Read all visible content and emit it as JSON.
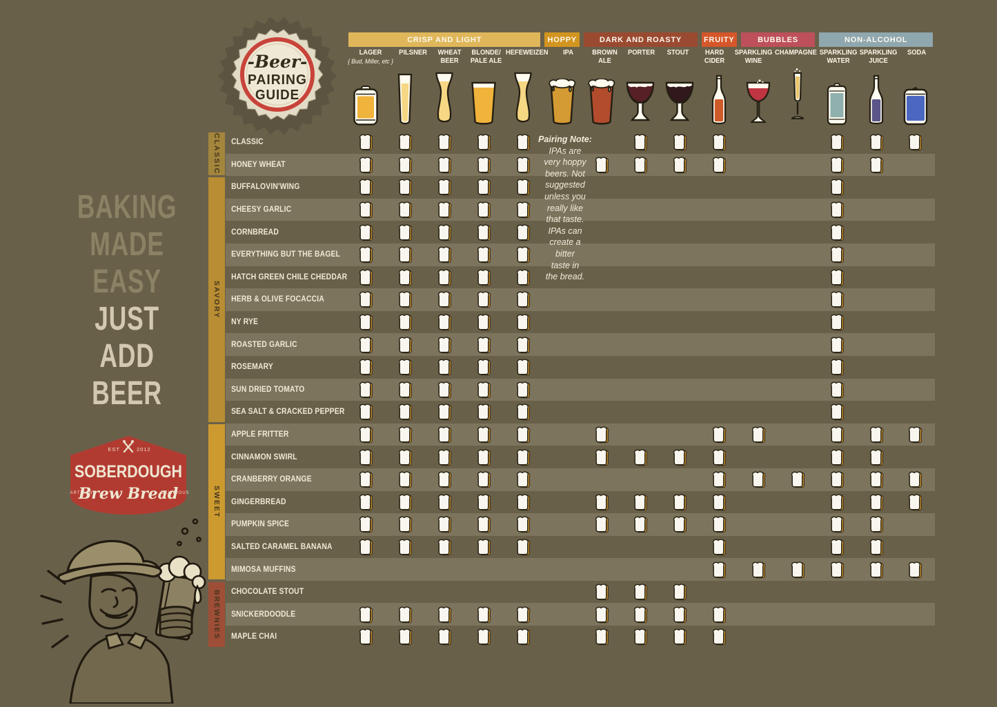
{
  "page": {
    "background": "#69604a"
  },
  "cap_logo": {
    "line1": "-Beer-",
    "line2": "PAIRING",
    "line3": "GUIDE"
  },
  "tagline": {
    "lines": [
      "BAKING",
      "MADE",
      "EASY",
      "JUST",
      "ADD",
      "BEER"
    ]
  },
  "brand": {
    "est": "EST",
    "year": "2012",
    "name": "SOBERDOUGH",
    "script": "Brew Bread",
    "left_small": "ARTISAN",
    "right_small": "DELICIOUS"
  },
  "pairing_note": {
    "lines": [
      "Pairing Note:",
      "IPAs are",
      "very hoppy",
      "beers. Not",
      "suggested",
      "unless you",
      "really like",
      "that taste.",
      "IPAs can",
      "create a",
      "bitter",
      "taste in",
      "the bread."
    ]
  },
  "chart_data": {
    "type": "heatmap",
    "title": "Beer Pairing Guide",
    "legend_note": "Pairing Note: IPAs are very hoppy beers. Not suggested unless you really like that taste. IPAs can create a bitter taste in the bread.",
    "category_bands": [
      {
        "label": "CRISP AND LIGHT",
        "color": "#dfb75a",
        "span": 5
      },
      {
        "label": "HOPPY",
        "color": "#d2951f",
        "span": 1
      },
      {
        "label": "DARK AND ROASTY",
        "color": "#9a4a31",
        "span": 3
      },
      {
        "label": "FRUITY",
        "color": "#d5562a",
        "span": 1
      },
      {
        "label": "BUBBLES",
        "color": "#bd505a",
        "span": 2
      },
      {
        "label": "NON-ALCOHOL",
        "color": "#8fa7ae",
        "span": 3
      }
    ],
    "columns": [
      {
        "id": "lager",
        "label": "LAGER",
        "sublabel": "{ Bud, Miller, etc }",
        "glass": "can",
        "color": "#f0b33b"
      },
      {
        "id": "pilsner",
        "label": "PILSNER",
        "glass": "pilsner",
        "color": "#f6d783"
      },
      {
        "id": "wheat-beer",
        "label": "WHEAT\nBEER",
        "glass": "weizen",
        "color": "#f6d783"
      },
      {
        "id": "blonde-pale-ale",
        "label": "BLONDE/\nPALE ALE",
        "glass": "pint",
        "color": "#f0b33b"
      },
      {
        "id": "hefeweizen",
        "label": "HEFEWEIZEN",
        "glass": "weizen",
        "color": "#f6d783"
      },
      {
        "id": "ipa",
        "label": "IPA",
        "glass": "pintfoam",
        "color": "#d49a33"
      },
      {
        "id": "brown-ale",
        "label": "BROWN ALE",
        "glass": "pintfoam",
        "color": "#b24c2d"
      },
      {
        "id": "porter",
        "label": "PORTER",
        "glass": "goblet",
        "color": "#571f26"
      },
      {
        "id": "stout",
        "label": "STOUT",
        "glass": "goblet",
        "color": "#31181c"
      },
      {
        "id": "hard-cider",
        "label": "HARD CIDER",
        "glass": "bottle",
        "color": "#cd5a28"
      },
      {
        "id": "sparkling-wine",
        "label": "SPARKLING\nWINE",
        "glass": "wine",
        "color": "#bf3541"
      },
      {
        "id": "champagne",
        "label": "CHAMPAGNE",
        "glass": "flute",
        "color": "#e9c469"
      },
      {
        "id": "sparkling-water",
        "label": "SPARKLING\nWATER",
        "glass": "tallcan",
        "color": "#8fb0ad"
      },
      {
        "id": "sparkling-juice",
        "label": "SPARKLING\nJUICE",
        "glass": "bottle",
        "color": "#5b5589"
      },
      {
        "id": "soda",
        "label": "SODA",
        "glass": "can2",
        "color": "#4b67c0"
      }
    ],
    "row_groups": [
      {
        "label": "CLASSIC",
        "color": "#a3853c",
        "row_count": 2
      },
      {
        "label": "SAVORY",
        "color": "#b88d33",
        "row_count": 11
      },
      {
        "label": "SWEET",
        "color": "#cc9a2f",
        "row_count": 7
      },
      {
        "label": "BREWNIES",
        "color": "#9e4e37",
        "row_count": 3
      }
    ],
    "rows": [
      {
        "name": "CLASSIC",
        "group": "CLASSIC",
        "pairs": [
          1,
          1,
          1,
          1,
          1,
          0,
          0,
          1,
          1,
          1,
          0,
          0,
          1,
          1,
          1
        ]
      },
      {
        "name": "HONEY WHEAT",
        "group": "CLASSIC",
        "pairs": [
          1,
          1,
          1,
          1,
          1,
          0,
          1,
          1,
          1,
          1,
          0,
          0,
          1,
          1,
          0
        ]
      },
      {
        "name": "BUFFALOVIN'WING",
        "group": "SAVORY",
        "pairs": [
          1,
          1,
          1,
          1,
          1,
          0,
          0,
          0,
          0,
          0,
          0,
          0,
          1,
          0,
          0
        ]
      },
      {
        "name": "CHEESY GARLIC",
        "group": "SAVORY",
        "pairs": [
          1,
          1,
          1,
          1,
          1,
          0,
          0,
          0,
          0,
          0,
          0,
          0,
          1,
          0,
          0
        ]
      },
      {
        "name": "CORNBREAD",
        "group": "SAVORY",
        "pairs": [
          1,
          1,
          1,
          1,
          1,
          0,
          0,
          0,
          0,
          0,
          0,
          0,
          1,
          0,
          0
        ]
      },
      {
        "name": "EVERYTHING BUT THE BAGEL",
        "group": "SAVORY",
        "pairs": [
          1,
          1,
          1,
          1,
          1,
          0,
          0,
          0,
          0,
          0,
          0,
          0,
          1,
          0,
          0
        ]
      },
      {
        "name": "HATCH GREEN CHILE CHEDDAR",
        "group": "SAVORY",
        "pairs": [
          1,
          1,
          1,
          1,
          1,
          0,
          0,
          0,
          0,
          0,
          0,
          0,
          1,
          0,
          0
        ]
      },
      {
        "name": "HERB & OLIVE FOCACCIA",
        "group": "SAVORY",
        "pairs": [
          1,
          1,
          1,
          1,
          1,
          0,
          0,
          0,
          0,
          0,
          0,
          0,
          1,
          0,
          0
        ]
      },
      {
        "name": "NY RYE",
        "group": "SAVORY",
        "pairs": [
          1,
          1,
          1,
          1,
          1,
          0,
          0,
          0,
          0,
          0,
          0,
          0,
          1,
          0,
          0
        ]
      },
      {
        "name": "ROASTED GARLIC",
        "group": "SAVORY",
        "pairs": [
          1,
          1,
          1,
          1,
          1,
          0,
          0,
          0,
          0,
          0,
          0,
          0,
          1,
          0,
          0
        ]
      },
      {
        "name": "ROSEMARY",
        "group": "SAVORY",
        "pairs": [
          1,
          1,
          1,
          1,
          1,
          0,
          0,
          0,
          0,
          0,
          0,
          0,
          1,
          0,
          0
        ]
      },
      {
        "name": "SUN DRIED TOMATO",
        "group": "SAVORY",
        "pairs": [
          1,
          1,
          1,
          1,
          1,
          0,
          0,
          0,
          0,
          0,
          0,
          0,
          1,
          0,
          0
        ]
      },
      {
        "name": "SEA SALT & CRACKED PEPPER",
        "group": "SAVORY",
        "pairs": [
          1,
          1,
          1,
          1,
          1,
          0,
          0,
          0,
          0,
          0,
          0,
          0,
          1,
          0,
          0
        ]
      },
      {
        "name": "APPLE FRITTER",
        "group": "SWEET",
        "pairs": [
          1,
          1,
          1,
          1,
          1,
          0,
          1,
          0,
          0,
          1,
          1,
          0,
          1,
          1,
          1
        ]
      },
      {
        "name": "CINNAMON SWIRL",
        "group": "SWEET",
        "pairs": [
          1,
          1,
          1,
          1,
          1,
          0,
          1,
          1,
          1,
          1,
          0,
          0,
          1,
          1,
          0
        ]
      },
      {
        "name": "CRANBERRY ORANGE",
        "group": "SWEET",
        "pairs": [
          1,
          1,
          1,
          1,
          1,
          0,
          0,
          0,
          0,
          1,
          1,
          1,
          1,
          1,
          1
        ]
      },
      {
        "name": "GINGERBREAD",
        "group": "SWEET",
        "pairs": [
          1,
          1,
          1,
          1,
          1,
          0,
          1,
          1,
          1,
          1,
          0,
          0,
          1,
          1,
          1
        ]
      },
      {
        "name": "PUMPKIN SPICE",
        "group": "SWEET",
        "pairs": [
          1,
          1,
          1,
          1,
          1,
          0,
          1,
          1,
          1,
          1,
          0,
          0,
          1,
          1,
          0
        ]
      },
      {
        "name": "SALTED CARAMEL BANANA",
        "group": "SWEET",
        "pairs": [
          1,
          1,
          1,
          1,
          1,
          0,
          0,
          0,
          0,
          1,
          0,
          0,
          1,
          1,
          0
        ]
      },
      {
        "name": "MIMOSA MUFFINS",
        "group": "SWEET",
        "pairs": [
          0,
          0,
          0,
          0,
          0,
          0,
          0,
          0,
          0,
          1,
          1,
          1,
          1,
          1,
          1
        ]
      },
      {
        "name": "CHOCOLATE STOUT",
        "group": "BREWNIES",
        "pairs": [
          0,
          0,
          0,
          0,
          0,
          0,
          1,
          1,
          1,
          0,
          0,
          0,
          0,
          0,
          0
        ]
      },
      {
        "name": "SNICKERDOODLE",
        "group": "BREWNIES",
        "pairs": [
          1,
          1,
          1,
          1,
          1,
          0,
          1,
          1,
          1,
          1,
          0,
          0,
          0,
          0,
          0
        ]
      },
      {
        "name": "MAPLE CHAI",
        "group": "BREWNIES",
        "pairs": [
          1,
          1,
          1,
          1,
          1,
          0,
          1,
          1,
          1,
          1,
          0,
          0,
          0,
          0,
          0
        ]
      }
    ]
  }
}
